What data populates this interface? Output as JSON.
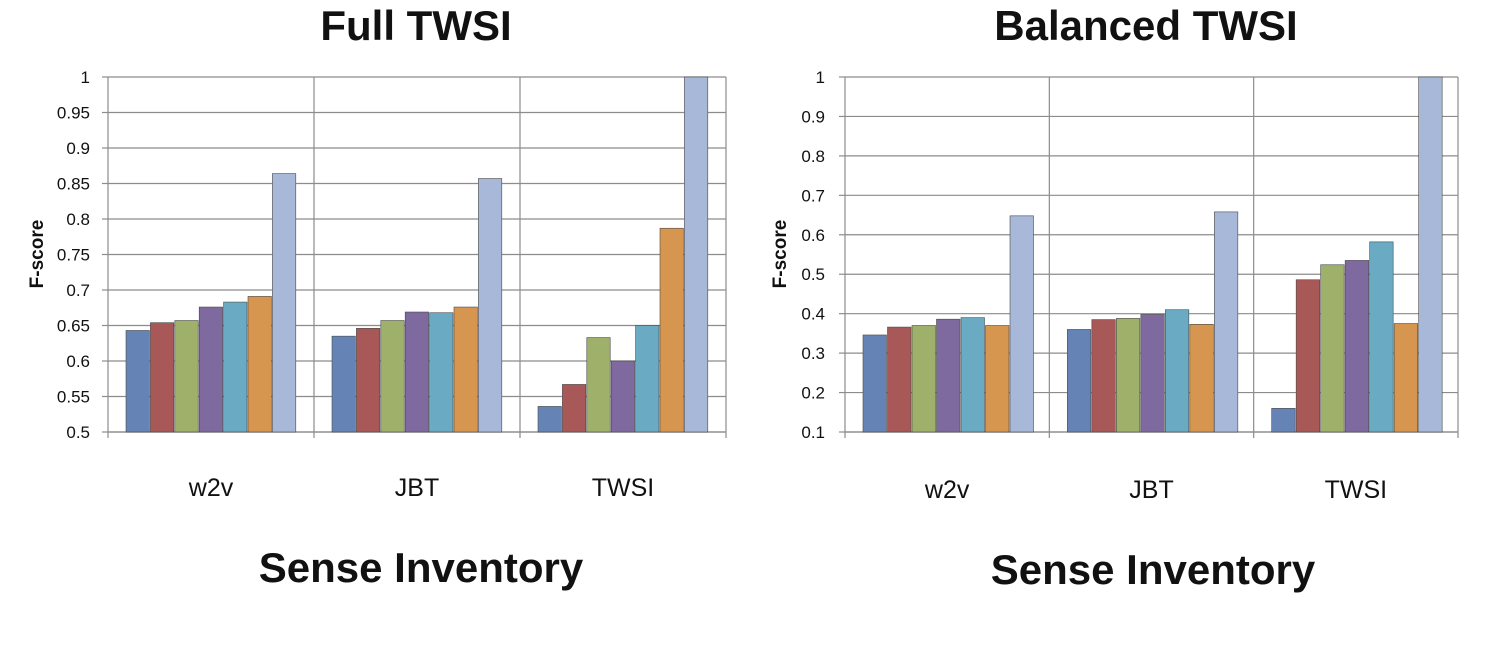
{
  "chart_data": [
    {
      "type": "bar",
      "title": "Full TWSI",
      "xlabel": "Sense Inventory",
      "ylabel": "F-score",
      "ylim": [
        0.5,
        1
      ],
      "yticks": [
        "0.5",
        "0.55",
        "0.6",
        "0.65",
        "0.7",
        "0.75",
        "0.8",
        "0.85",
        "0.9",
        "0.95",
        "1"
      ],
      "grid": true,
      "legend": "none",
      "categories": [
        "w2v",
        "JBT",
        "TWSI"
      ],
      "series": [
        {
          "color": "#6683b5",
          "values": [
            0.643,
            0.635,
            0.536
          ]
        },
        {
          "color": "#a85856",
          "values": [
            0.654,
            0.646,
            0.567
          ]
        },
        {
          "color": "#9eb06a",
          "values": [
            0.657,
            0.657,
            0.633
          ]
        },
        {
          "color": "#7f6aa0",
          "values": [
            0.676,
            0.669,
            0.6
          ]
        },
        {
          "color": "#6aaac3",
          "values": [
            0.683,
            0.668,
            0.65
          ]
        },
        {
          "color": "#d6964f",
          "values": [
            0.691,
            0.676,
            0.787
          ]
        },
        {
          "color": "#a8b8d8",
          "values": [
            0.864,
            0.857,
            1.0
          ]
        }
      ]
    },
    {
      "type": "bar",
      "title": "Balanced TWSI",
      "xlabel": "Sense Inventory",
      "ylabel": "F-score",
      "ylim": [
        0.1,
        1
      ],
      "yticks": [
        "0.1",
        "0.2",
        "0.3",
        "0.4",
        "0.5",
        "0.6",
        "0.7",
        "0.8",
        "0.9",
        "1"
      ],
      "grid": true,
      "legend": "none",
      "categories": [
        "w2v",
        "JBT",
        "TWSI"
      ],
      "series": [
        {
          "color": "#6683b5",
          "values": [
            0.346,
            0.36,
            0.16
          ]
        },
        {
          "color": "#a85856",
          "values": [
            0.366,
            0.385,
            0.486
          ]
        },
        {
          "color": "#9eb06a",
          "values": [
            0.37,
            0.388,
            0.524
          ]
        },
        {
          "color": "#7f6aa0",
          "values": [
            0.386,
            0.398,
            0.535
          ]
        },
        {
          "color": "#6aaac3",
          "values": [
            0.39,
            0.41,
            0.582
          ]
        },
        {
          "color": "#d6964f",
          "values": [
            0.37,
            0.373,
            0.375
          ]
        },
        {
          "color": "#a8b8d8",
          "values": [
            0.648,
            0.658,
            1.0
          ]
        }
      ]
    }
  ]
}
